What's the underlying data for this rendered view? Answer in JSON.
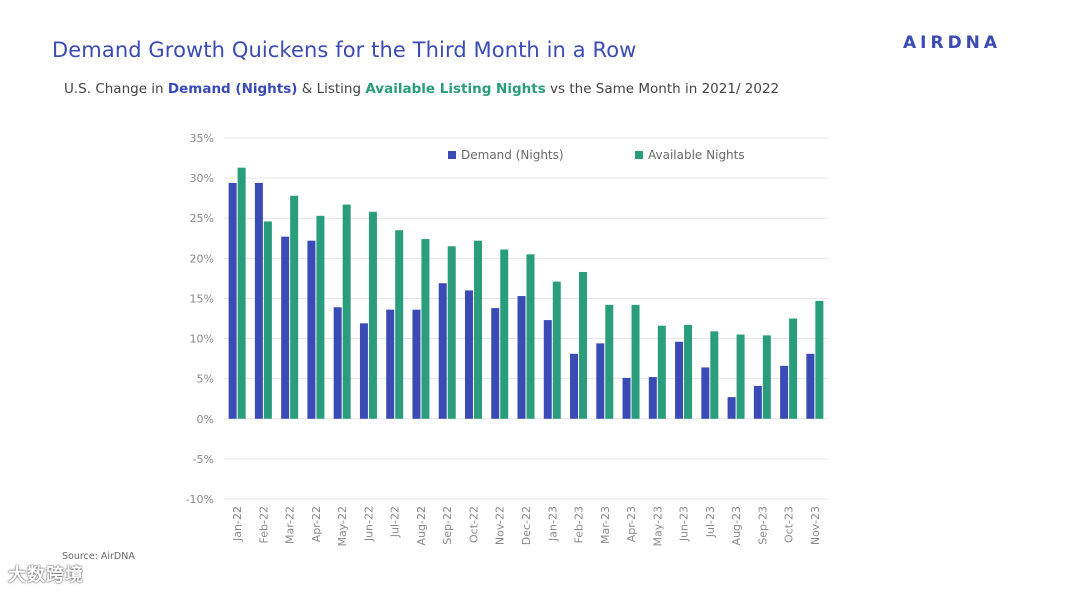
{
  "header": {
    "title": "Demand Growth Quickens for the Third Month in a Row",
    "logo_text": "AIRDNA",
    "subtitle_pre": "U.S. Change in ",
    "subtitle_demand": "Demand (Nights)",
    "subtitle_mid": " & Listing ",
    "subtitle_avail": "Available Listing Nights",
    "subtitle_post": " vs the Same Month in 2021/ 2022"
  },
  "footer": {
    "source": "Source: AirDNA",
    "watermark": "大数跨境"
  },
  "colors": {
    "demand": "#3b4bb5",
    "available": "#2a9d7c",
    "grid": "#e6e6e6",
    "title": "#3b4bb5"
  },
  "chart_data": {
    "type": "bar",
    "categories": [
      "Jan-22",
      "Feb-22",
      "Mar-22",
      "Apr-22",
      "May-22",
      "Jun-22",
      "Jul-22",
      "Aug-22",
      "Sep-22",
      "Oct-22",
      "Nov-22",
      "Dec-22",
      "Jan-23",
      "Feb-23",
      "Mar-23",
      "Apr-23",
      "May-23",
      "Jun-23",
      "Jul-23",
      "Aug-23",
      "Sep-23",
      "Oct-23",
      "Nov-23"
    ],
    "series": [
      {
        "name": "Demand (Nights)",
        "color": "#3b4bb5",
        "values": [
          29.4,
          29.4,
          22.7,
          22.2,
          13.9,
          11.9,
          13.6,
          13.6,
          16.9,
          16.0,
          13.8,
          15.3,
          12.3,
          8.1,
          9.4,
          5.1,
          5.2,
          9.6,
          6.4,
          2.7,
          4.1,
          6.6,
          8.1
        ]
      },
      {
        "name": "Available Nights",
        "color": "#2a9d7c",
        "values": [
          31.3,
          24.6,
          27.8,
          25.3,
          26.7,
          25.8,
          23.5,
          22.4,
          21.5,
          22.2,
          21.1,
          20.5,
          17.1,
          18.3,
          14.2,
          14.2,
          11.6,
          11.7,
          10.9,
          10.5,
          10.4,
          12.5,
          14.7
        ]
      }
    ],
    "y_ticks": [
      "35%",
      "30%",
      "25%",
      "20%",
      "15%",
      "10%",
      "5%",
      "0%",
      "-5%",
      "-10%"
    ],
    "ylim": [
      -10,
      35
    ],
    "y_unit": "%",
    "grid": true,
    "legend_position": "top-right"
  }
}
